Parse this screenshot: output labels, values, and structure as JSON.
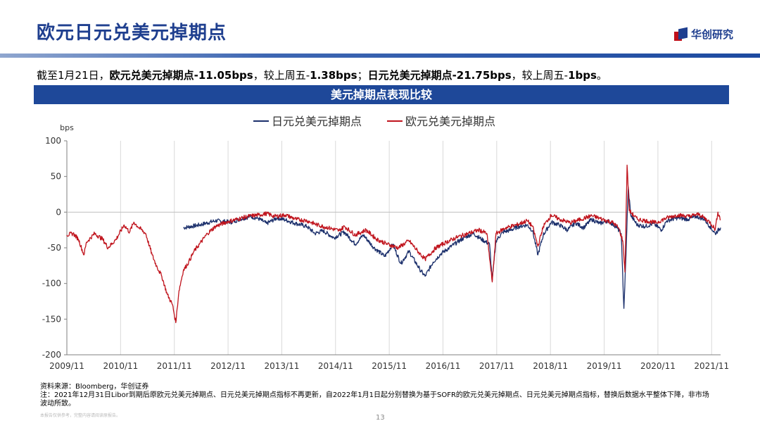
{
  "header": {
    "title": "欧元日元兑美元掉期点",
    "logo_text": "华创研究"
  },
  "summary": {
    "p1": "截至1月21日，",
    "b1": "欧元兑美元掉期点-11.05bps",
    "p2": "，较上周五-",
    "b2": "1.38bps",
    "p3": "；",
    "b3": "日元兑美元掉期点-21.75bps",
    "p4": "，较上周五-",
    "b4": "1bps",
    "p5": "。"
  },
  "chart_banner": "美元掉期点表现比较",
  "chart_data": {
    "type": "line",
    "title": "美元掉期点表现比较",
    "ylabel": "bps",
    "xlabel": "",
    "ylim": [
      -200,
      100
    ],
    "yticks": [
      100,
      50,
      0,
      -50,
      -100,
      -150,
      -200
    ],
    "xlim": [
      2009.833,
      2022.0
    ],
    "xticks": [
      "2009/11",
      "2010/11",
      "2011/11",
      "2012/11",
      "2013/11",
      "2014/11",
      "2015/11",
      "2016/11",
      "2017/11",
      "2018/11",
      "2019/11",
      "2020/11",
      "2021/11"
    ],
    "grid": "vertical",
    "legend": "top-center",
    "series": [
      {
        "name": "日元兑美元掉期点",
        "color": "#1b2f6b",
        "points": [
          [
            2012.0,
            -22
          ],
          [
            2012.3,
            -18
          ],
          [
            2012.6,
            -12
          ],
          [
            2012.9,
            -14
          ],
          [
            2013.05,
            -10
          ],
          [
            2013.25,
            -6
          ],
          [
            2013.4,
            -9
          ],
          [
            2013.55,
            -16
          ],
          [
            2013.75,
            -8
          ],
          [
            2013.9,
            -11
          ],
          [
            2014.1,
            -16
          ],
          [
            2014.3,
            -20
          ],
          [
            2014.45,
            -30
          ],
          [
            2014.6,
            -26
          ],
          [
            2014.8,
            -36
          ],
          [
            2015.0,
            -28
          ],
          [
            2015.2,
            -45
          ],
          [
            2015.35,
            -32
          ],
          [
            2015.55,
            -50
          ],
          [
            2015.75,
            -62
          ],
          [
            2015.9,
            -45
          ],
          [
            2016.05,
            -72
          ],
          [
            2016.2,
            -55
          ],
          [
            2016.4,
            -80
          ],
          [
            2016.5,
            -90
          ],
          [
            2016.65,
            -70
          ],
          [
            2016.8,
            -58
          ],
          [
            2016.95,
            -50
          ],
          [
            2017.1,
            -42
          ],
          [
            2017.25,
            -35
          ],
          [
            2017.4,
            -30
          ],
          [
            2017.55,
            -38
          ],
          [
            2017.7,
            -45
          ],
          [
            2017.75,
            -96
          ],
          [
            2017.82,
            -40
          ],
          [
            2017.95,
            -28
          ],
          [
            2018.1,
            -25
          ],
          [
            2018.25,
            -20
          ],
          [
            2018.4,
            -18
          ],
          [
            2018.5,
            -26
          ],
          [
            2018.6,
            -60
          ],
          [
            2018.7,
            -32
          ],
          [
            2018.85,
            -14
          ],
          [
            2019.0,
            -18
          ],
          [
            2019.15,
            -25
          ],
          [
            2019.3,
            -15
          ],
          [
            2019.45,
            -22
          ],
          [
            2019.6,
            -10
          ],
          [
            2019.75,
            -16
          ],
          [
            2019.9,
            -12
          ],
          [
            2020.05,
            -20
          ],
          [
            2020.15,
            -30
          ],
          [
            2020.2,
            -135
          ],
          [
            2020.24,
            -60
          ],
          [
            2020.28,
            35
          ],
          [
            2020.33,
            -5
          ],
          [
            2020.45,
            -18
          ],
          [
            2020.6,
            -20
          ],
          [
            2020.75,
            -16
          ],
          [
            2020.9,
            -25
          ],
          [
            2021.0,
            -12
          ],
          [
            2021.2,
            -8
          ],
          [
            2021.4,
            -10
          ],
          [
            2021.55,
            -6
          ],
          [
            2021.7,
            -10
          ],
          [
            2021.8,
            -20
          ],
          [
            2021.9,
            -30
          ],
          [
            2022.0,
            -21.75
          ]
        ]
      },
      {
        "name": "欧元兑美元掉期点",
        "color": "#c0141d",
        "points": [
          [
            2009.833,
            -32
          ],
          [
            2009.95,
            -30
          ],
          [
            2010.05,
            -38
          ],
          [
            2010.15,
            -60
          ],
          [
            2010.2,
            -42
          ],
          [
            2010.35,
            -30
          ],
          [
            2010.5,
            -38
          ],
          [
            2010.6,
            -50
          ],
          [
            2010.75,
            -38
          ],
          [
            2010.9,
            -18
          ],
          [
            2011.0,
            -28
          ],
          [
            2011.08,
            -14
          ],
          [
            2011.15,
            -20
          ],
          [
            2011.3,
            -30
          ],
          [
            2011.42,
            -60
          ],
          [
            2011.5,
            -75
          ],
          [
            2011.6,
            -90
          ],
          [
            2011.7,
            -115
          ],
          [
            2011.8,
            -130
          ],
          [
            2011.86,
            -155
          ],
          [
            2011.92,
            -110
          ],
          [
            2012.0,
            -82
          ],
          [
            2012.1,
            -70
          ],
          [
            2012.2,
            -55
          ],
          [
            2012.3,
            -45
          ],
          [
            2012.45,
            -30
          ],
          [
            2012.6,
            -20
          ],
          [
            2012.8,
            -14
          ],
          [
            2013.0,
            -10
          ],
          [
            2013.2,
            -6
          ],
          [
            2013.4,
            -4
          ],
          [
            2013.55,
            -2
          ],
          [
            2013.7,
            -6
          ],
          [
            2013.9,
            -4
          ],
          [
            2014.1,
            -10
          ],
          [
            2014.3,
            -12
          ],
          [
            2014.5,
            -18
          ],
          [
            2014.7,
            -22
          ],
          [
            2014.9,
            -26
          ],
          [
            2015.0,
            -20
          ],
          [
            2015.2,
            -32
          ],
          [
            2015.4,
            -25
          ],
          [
            2015.6,
            -38
          ],
          [
            2015.8,
            -45
          ],
          [
            2016.0,
            -50
          ],
          [
            2016.2,
            -40
          ],
          [
            2016.4,
            -58
          ],
          [
            2016.5,
            -66
          ],
          [
            2016.7,
            -50
          ],
          [
            2016.9,
            -42
          ],
          [
            2017.1,
            -35
          ],
          [
            2017.3,
            -30
          ],
          [
            2017.5,
            -25
          ],
          [
            2017.65,
            -30
          ],
          [
            2017.75,
            -98
          ],
          [
            2017.82,
            -30
          ],
          [
            2018.0,
            -22
          ],
          [
            2018.2,
            -18
          ],
          [
            2018.4,
            -12
          ],
          [
            2018.5,
            -20
          ],
          [
            2018.6,
            -48
          ],
          [
            2018.7,
            -20
          ],
          [
            2018.85,
            -4
          ],
          [
            2019.0,
            -10
          ],
          [
            2019.2,
            -15
          ],
          [
            2019.4,
            -10
          ],
          [
            2019.6,
            -5
          ],
          [
            2019.8,
            -10
          ],
          [
            2020.0,
            -15
          ],
          [
            2020.1,
            -22
          ],
          [
            2020.18,
            -40
          ],
          [
            2020.22,
            -84
          ],
          [
            2020.26,
            66
          ],
          [
            2020.3,
            2
          ],
          [
            2020.45,
            -10
          ],
          [
            2020.6,
            -12
          ],
          [
            2020.8,
            -15
          ],
          [
            2021.0,
            -8
          ],
          [
            2021.2,
            -4
          ],
          [
            2021.4,
            -6
          ],
          [
            2021.6,
            -3
          ],
          [
            2021.8,
            -14
          ],
          [
            2021.9,
            -24
          ],
          [
            2021.95,
            0
          ],
          [
            2022.0,
            -11.05
          ]
        ]
      }
    ]
  },
  "footer": {
    "source": "资料来源：Bloomberg，华创证券",
    "note": "注：2021年12月31日Libor到期后原欧元兑美元掉期点、日元兑美元掉期点指标不再更新，自2022年1月1日起分别替换为基于SOFR的欧元兑美元掉期点、日元兑美元掉期点指标，替换后数据水平整体下降，非市场波动所致。",
    "disclaimer": "本报告仅供参考，完整内容请阅读原报告。",
    "page_number": "13"
  }
}
